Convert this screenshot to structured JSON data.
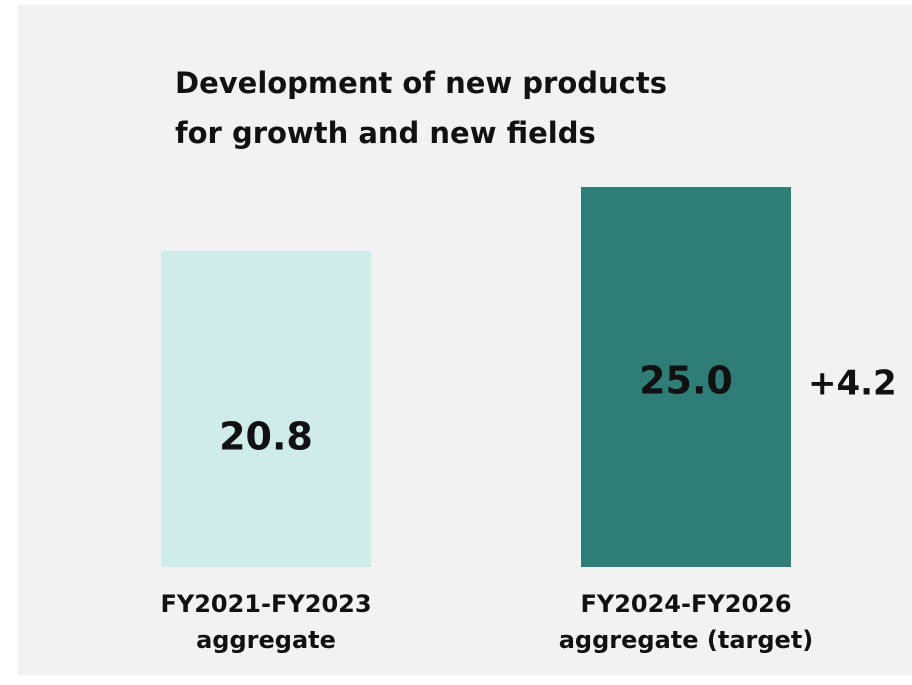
{
  "chart_data": {
    "type": "bar",
    "title": [
      "Development of new products",
      "for growth and new fields"
    ],
    "categories": [
      [
        "FY2021-FY2023",
        "aggregate"
      ],
      [
        "FY2024-FY2026",
        "aggregate (target)"
      ]
    ],
    "values": [
      20.8,
      25
    ],
    "value_labels": [
      "20.8",
      "25.0"
    ],
    "colors": [
      "#d0ecea",
      "#2e7d76"
    ],
    "label_colors": [
      "#111111",
      "#ffffff"
    ],
    "annotation": "+4.2"
  }
}
